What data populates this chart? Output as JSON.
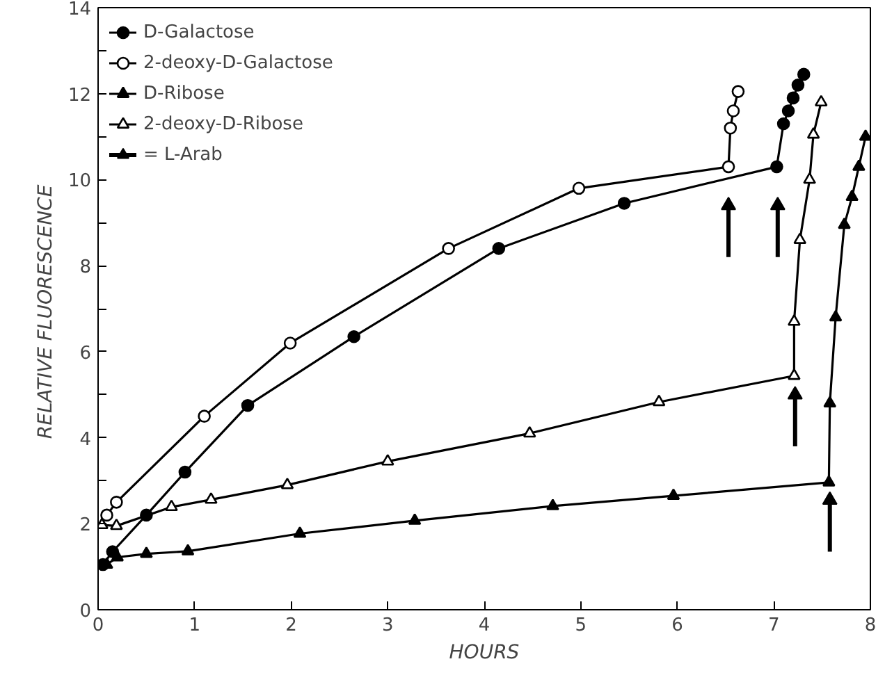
{
  "chart_data": {
    "type": "line",
    "xlabel": "HOURS",
    "ylabel": "RELATIVE  FLUORESCENCE",
    "xlim": [
      0,
      8
    ],
    "ylim": [
      0,
      14
    ],
    "xticks": [
      0,
      1,
      2,
      3,
      4,
      5,
      6,
      7,
      8
    ],
    "yticks": [
      0,
      {
        "value": 1,
        "label": null
      },
      2,
      {
        "value": 3,
        "label": null
      },
      4,
      {
        "value": 5,
        "label": null
      },
      6,
      {
        "value": 7,
        "label": null
      },
      8,
      {
        "value": 9,
        "label": null
      },
      10,
      {
        "value": 11,
        "label": null
      },
      12,
      {
        "value": 13,
        "label": null
      },
      14
    ],
    "grid": false,
    "legend": "top left",
    "line_style": "solid",
    "series": [
      {
        "name": "D-Galactose",
        "color": "#000000",
        "marker": "circle",
        "colors": [
          "#000000",
          "#000000",
          "#000000",
          "#000000",
          "#000000",
          "#000000",
          "#000000",
          "#000000",
          "#000000",
          "#000000",
          "#000000",
          "#000000",
          "#000000",
          "#000000"
        ],
        "x": [
          0.05,
          0.15,
          0.5,
          0.9,
          1.55,
          2.65,
          4.15,
          5.45,
          7.03,
          7.1,
          7.15,
          7.2,
          7.25,
          7.31
        ],
        "values": [
          1.05,
          1.35,
          2.2,
          3.2,
          4.75,
          6.35,
          8.4,
          9.45,
          10.3,
          11.3,
          11.6,
          11.9,
          12.2,
          12.45
        ]
      },
      {
        "name": "2-deoxy-D-Galactose",
        "color": "#000000",
        "marker": "circle",
        "colors": [
          "#ffffff",
          "#ffffff",
          "#ffffff",
          "#ffffff",
          "#ffffff",
          "#ffffff",
          "#ffffff",
          "#ffffff",
          "#ffffff",
          "#ffffff"
        ],
        "x": [
          0.09,
          0.19,
          1.1,
          1.99,
          3.63,
          4.98,
          6.53,
          6.55,
          6.58,
          6.63
        ],
        "values": [
          2.2,
          2.5,
          4.5,
          6.2,
          8.4,
          9.8,
          10.3,
          11.2,
          11.6,
          12.05
        ]
      },
      {
        "name": "D-Ribose",
        "color": "#000000",
        "marker": "triangle",
        "colors": [
          "#000000",
          "#000000",
          "#000000",
          "#000000",
          "#000000",
          "#000000",
          "#000000",
          "#000000",
          "#000000",
          "#000000",
          "#000000",
          "#000000",
          "#000000",
          "#000000",
          "#000000"
        ],
        "x": [
          0.09,
          0.2,
          0.5,
          0.93,
          2.09,
          3.28,
          4.71,
          5.96,
          7.57,
          7.58,
          7.64,
          7.73,
          7.81,
          7.88,
          7.95
        ],
        "values": [
          1.05,
          1.22,
          1.3,
          1.36,
          1.77,
          2.07,
          2.41,
          2.65,
          2.96,
          4.8,
          6.8,
          8.95,
          9.6,
          10.3,
          11.0
        ]
      },
      {
        "name": "2-deoxy-D-Ribose",
        "color": "#000000",
        "marker": "triangle",
        "colors": [
          "#ffffff",
          "#ffffff",
          "#ffffff",
          "#ffffff",
          "#ffffff",
          "#ffffff",
          "#ffffff",
          "#ffffff",
          "#ffffff",
          "#ffffff",
          "#ffffff",
          "#ffffff",
          "#ffffff",
          "#ffffff"
        ],
        "x": [
          0.04,
          0.19,
          0.76,
          1.17,
          1.96,
          3.0,
          4.47,
          5.81,
          7.21,
          7.21,
          7.27,
          7.37,
          7.41,
          7.49
        ],
        "values": [
          1.97,
          1.95,
          2.39,
          2.56,
          2.9,
          3.45,
          4.1,
          4.83,
          5.44,
          6.7,
          8.6,
          10.0,
          11.05,
          11.8
        ]
      },
      {
        "name": "= L-Arab",
        "type": "scatter",
        "marker": "triangle",
        "color": "#000000",
        "x": [
          6.53,
          7.04,
          7.22,
          7.58
        ],
        "values": [
          9.4,
          9.4,
          5.0,
          2.55
        ],
        "errors": [
          [
            8.2,
            9.4
          ],
          [
            8.2,
            9.4
          ],
          [
            3.8,
            5.0
          ],
          [
            1.35,
            2.55
          ]
        ]
      }
    ]
  }
}
